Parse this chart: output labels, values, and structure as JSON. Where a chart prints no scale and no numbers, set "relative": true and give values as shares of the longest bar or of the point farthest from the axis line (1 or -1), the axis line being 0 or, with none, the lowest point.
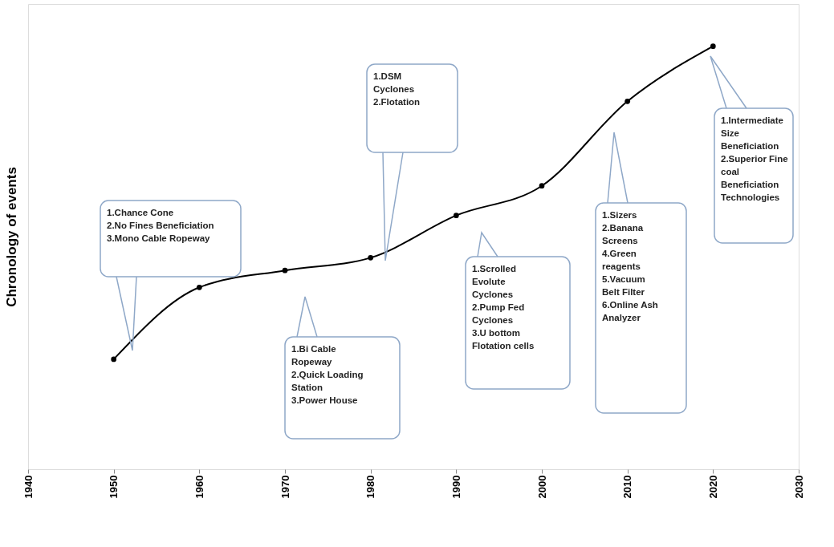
{
  "chart_data": {
    "type": "line",
    "relative": true,
    "ylabel": "Chronology of events",
    "x": [
      1950,
      1960,
      1970,
      1980,
      1990,
      2000,
      2010,
      2020
    ],
    "series": [
      {
        "color": "#000000",
        "values": [
          0.26,
          0.43,
          0.47,
          0.5,
          0.6,
          0.67,
          0.87,
          1
        ]
      }
    ],
    "xlim": [
      1940,
      2030
    ],
    "xticks": [
      1940,
      1950,
      1960,
      1970,
      1980,
      1990,
      2000,
      2010,
      2020,
      2030
    ],
    "marker": "circle",
    "line_style": "solid",
    "grid": false,
    "annotations": [
      "1.Chance Cone\n2.No Fines Beneficiation\n3.Mono Cable Ropeway",
      "1.Bi Cable\nRopeway\n2.Quick Loading\nStation\n3.Power House",
      "1.DSM\nCyclones\n2.Flotation",
      "1.Scrolled\nEvolute\nCyclones\n2.Pump Fed\nCyclones\n3.U bottom\nFlotation cells",
      "1.Sizers\n2.Banana\nScreens\n4.Green\nreagents\n5.Vacuum\nBelt Filter\n6.Online Ash\nAnalyzer",
      "1.Intermediate\nSize\nBeneficiation\n2.Superior Fine\ncoal\nBeneficiation\nTechnologies"
    ]
  }
}
